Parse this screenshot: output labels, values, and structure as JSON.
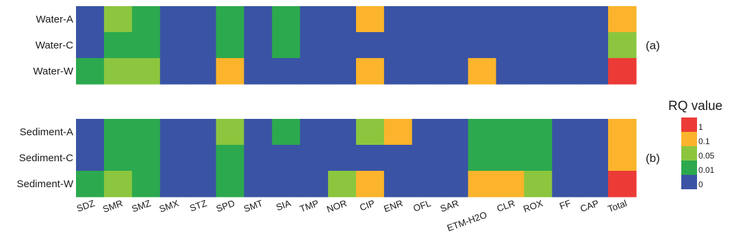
{
  "chart_data": {
    "type": "heatmap",
    "columns": [
      "SDZ",
      "SMR",
      "SMZ",
      "SMX",
      "STZ",
      "SPD",
      "SMT",
      "SIA",
      "TMP",
      "NOR",
      "CIP",
      "ENR",
      "OFL",
      "SAR",
      "ETM-H2O",
      "CLR",
      "ROX",
      "FF",
      "CAP",
      "Total"
    ],
    "panels": [
      {
        "label": "(a)",
        "rows": [
          "Water-A",
          "Water-C",
          "Water-W"
        ],
        "levels": [
          [
            0,
            2,
            1,
            0,
            0,
            1,
            0,
            1,
            0,
            0,
            3,
            0,
            0,
            0,
            0,
            0,
            0,
            0,
            0,
            3
          ],
          [
            0,
            1,
            1,
            0,
            0,
            1,
            0,
            1,
            0,
            0,
            0,
            0,
            0,
            0,
            0,
            0,
            0,
            0,
            0,
            2
          ],
          [
            1,
            2,
            2,
            0,
            0,
            3,
            0,
            0,
            0,
            0,
            3,
            0,
            0,
            0,
            3,
            0,
            0,
            0,
            0,
            4
          ]
        ]
      },
      {
        "label": "(b)",
        "rows": [
          "Sediment-A",
          "Sediment-C",
          "Sediment-W"
        ],
        "levels": [
          [
            0,
            1,
            1,
            0,
            0,
            2,
            0,
            1,
            0,
            0,
            2,
            3,
            0,
            0,
            1,
            1,
            1,
            0,
            0,
            3
          ],
          [
            0,
            1,
            1,
            0,
            0,
            1,
            0,
            0,
            0,
            0,
            0,
            0,
            0,
            0,
            1,
            1,
            1,
            0,
            0,
            3
          ],
          [
            1,
            2,
            1,
            0,
            0,
            1,
            0,
            0,
            0,
            2,
            3,
            0,
            0,
            0,
            3,
            3,
            2,
            0,
            0,
            4
          ]
        ]
      }
    ],
    "legend": {
      "title": "RQ value",
      "colors": [
        "#3a53a4",
        "#2ca94e",
        "#8cc63f",
        "#fbb42b",
        "#ec3b36"
      ],
      "labels": [
        "0",
        "0.01",
        "0.05",
        "0.1",
        "1"
      ]
    }
  }
}
